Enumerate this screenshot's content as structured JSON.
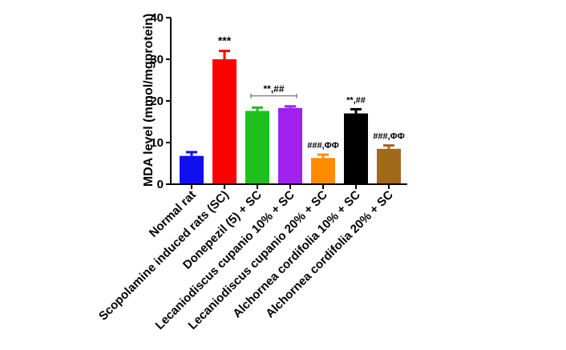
{
  "chart_data": {
    "type": "bar",
    "ylabel": "MDA level (mmol/mgprotein)",
    "ylim": [
      0,
      40
    ],
    "yticks": [
      0,
      10,
      20,
      30,
      40
    ],
    "grid": false,
    "categories": [
      "Normal rat",
      "Scopolamine induced rats (SC)",
      "Donepezil (5) + SC",
      "Lecaniodiscus cupanio 10% + SC",
      "Lecaniodiscus cupanio 20% + SC",
      "Alchornea cordifolia 10% + SC",
      "Alchornea cordifolia 20% + SC"
    ],
    "values": [
      6.8,
      30.0,
      17.6,
      18.3,
      6.3,
      17.0,
      8.5
    ],
    "errors": [
      0.9,
      2.0,
      0.8,
      0.4,
      0.8,
      1.0,
      0.8
    ],
    "colors": [
      "#1010ee",
      "#ff0000",
      "#1ec01e",
      "#a020f0",
      "#ff8c00",
      "#000000",
      "#a0691c"
    ],
    "annotations": [
      {
        "text": "***",
        "bar": 1
      },
      {
        "text": "**,##",
        "bars": [
          2,
          3
        ],
        "bracket": true
      },
      {
        "text": "###,ΦΦ",
        "bar": 4
      },
      {
        "text": "**,##",
        "bar": 5
      },
      {
        "text": "###,ΦΦ",
        "bar": 6
      }
    ]
  }
}
